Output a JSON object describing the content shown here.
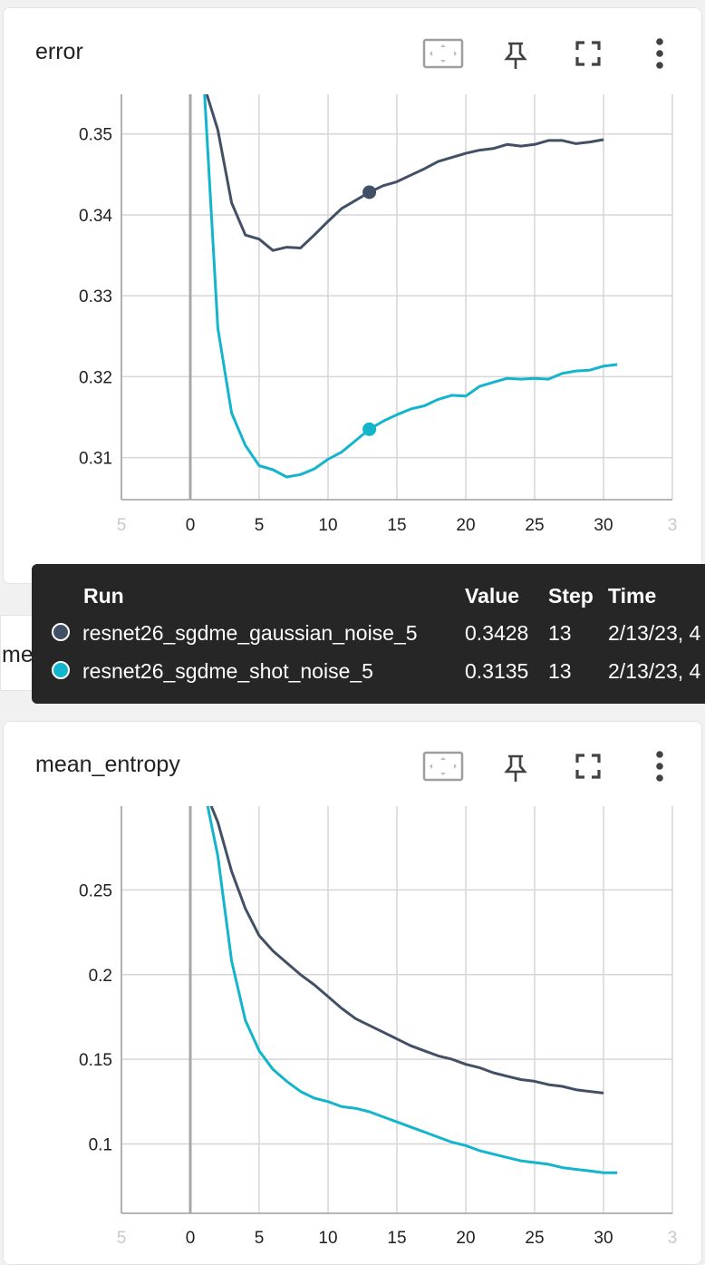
{
  "cards": [
    {
      "title": "error",
      "toolbar": {
        "icons": [
          "fit-domain-icon",
          "pin-icon",
          "fullscreen-icon",
          "more-vert-icon"
        ]
      },
      "chart_data": {
        "type": "line",
        "title": "error",
        "xlim": [
          -5,
          35
        ],
        "ylim": [
          0.3048,
          0.3549
        ],
        "x_ticks": [
          "5",
          "0",
          "5",
          "10",
          "15",
          "20",
          "25",
          "30",
          "3"
        ],
        "y_ticks": [
          "0.35",
          "0.34",
          "0.33",
          "0.32",
          "0.31"
        ],
        "grid": true,
        "colors": [
          "#425066",
          "#12b5cb"
        ],
        "series": [
          {
            "name": "resnet26_sgdme_gaussian_noise_5",
            "color": "#425066",
            "x": [
              1,
              2,
              3,
              4,
              5,
              6,
              7,
              8,
              9,
              10,
              11,
              12,
              13,
              14,
              15,
              16,
              17,
              18,
              19,
              20,
              21,
              22,
              23,
              24,
              25,
              26,
              27,
              28,
              29,
              30
            ],
            "y": [
              0.356,
              0.3505,
              0.3415,
              0.3375,
              0.337,
              0.3356,
              0.336,
              0.3359,
              0.3375,
              0.3392,
              0.3408,
              0.3418,
              0.3428,
              0.3436,
              0.3441,
              0.3449,
              0.3457,
              0.3466,
              0.3471,
              0.3476,
              0.348,
              0.3482,
              0.3487,
              0.3485,
              0.3487,
              0.3492,
              0.3492,
              0.3488,
              0.349,
              0.3493
            ],
            "highlight": {
              "x": 13,
              "y": 0.3428
            }
          },
          {
            "name": "resnet26_sgdme_shot_noise_5",
            "color": "#12b5cb",
            "x": [
              1,
              2,
              3,
              4,
              5,
              6,
              7,
              8,
              9,
              10,
              11,
              12,
              13,
              14,
              15,
              16,
              17,
              18,
              19,
              20,
              21,
              22,
              23,
              24,
              25,
              26,
              27,
              28,
              29,
              30,
              31
            ],
            "y": [
              0.356,
              0.326,
              0.3155,
              0.3115,
              0.309,
              0.3085,
              0.3076,
              0.3079,
              0.3086,
              0.3098,
              0.3107,
              0.3121,
              0.3135,
              0.3145,
              0.3153,
              0.316,
              0.3164,
              0.3172,
              0.3177,
              0.3176,
              0.3188,
              0.3193,
              0.3198,
              0.3197,
              0.3198,
              0.3197,
              0.3204,
              0.3207,
              0.3208,
              0.3213,
              0.3215
            ],
            "highlight": {
              "x": 13,
              "y": 0.3135
            }
          }
        ]
      }
    },
    {
      "title": "mean_entropy",
      "toolbar": {
        "icons": [
          "fit-domain-icon",
          "pin-icon",
          "fullscreen-icon",
          "more-vert-icon"
        ]
      },
      "chart_data": {
        "type": "line",
        "title": "mean_entropy",
        "xlim": [
          -5,
          35
        ],
        "ylim": [
          0.059,
          0.2995
        ],
        "x_ticks": [
          "5",
          "0",
          "5",
          "10",
          "15",
          "20",
          "25",
          "30",
          "3"
        ],
        "y_ticks": [
          "0.25",
          "0.2",
          "0.15",
          "0.1"
        ],
        "grid": true,
        "colors": [
          "#425066",
          "#12b5cb"
        ],
        "series": [
          {
            "name": "resnet26_sgdme_gaussian_noise_5",
            "color": "#425066",
            "x": [
              1,
              2,
              3,
              4,
              5,
              6,
              7,
              8,
              9,
              10,
              11,
              12,
              13,
              14,
              15,
              16,
              17,
              18,
              19,
              20,
              21,
              22,
              23,
              24,
              25,
              26,
              27,
              28,
              29,
              30
            ],
            "y": [
              0.31,
              0.29,
              0.261,
              0.239,
              0.223,
              0.214,
              0.207,
              0.2,
              0.194,
              0.187,
              0.18,
              0.174,
              0.17,
              0.166,
              0.162,
              0.158,
              0.155,
              0.152,
              0.15,
              0.147,
              0.145,
              0.142,
              0.14,
              0.138,
              0.137,
              0.135,
              0.134,
              0.132,
              0.131,
              0.13
            ]
          },
          {
            "name": "resnet26_sgdme_shot_noise_5",
            "color": "#12b5cb",
            "x": [
              1,
              2,
              3,
              4,
              5,
              6,
              7,
              8,
              9,
              10,
              11,
              12,
              13,
              14,
              15,
              16,
              17,
              18,
              19,
              20,
              21,
              22,
              23,
              24,
              25,
              26,
              27,
              28,
              29,
              30,
              31
            ],
            "y": [
              0.31,
              0.27,
              0.208,
              0.173,
              0.155,
              0.144,
              0.137,
              0.131,
              0.127,
              0.125,
              0.122,
              0.121,
              0.119,
              0.116,
              0.113,
              0.11,
              0.107,
              0.104,
              0.101,
              0.099,
              0.096,
              0.094,
              0.092,
              0.09,
              0.089,
              0.088,
              0.086,
              0.085,
              0.084,
              0.083,
              0.083
            ]
          }
        ]
      }
    }
  ],
  "tooltip": {
    "headers": {
      "run": "Run",
      "value": "Value",
      "step": "Step",
      "time": "Time"
    },
    "rows": [
      {
        "color": "#425066",
        "run": "resnet26_sgdme_gaussian_noise_5",
        "value": "0.3428",
        "step": "13",
        "time": "2/13/23, 4"
      },
      {
        "color": "#12b5cb",
        "run": "resnet26_sgdme_shot_noise_5",
        "value": "0.3135",
        "step": "13",
        "time": "2/13/23, 4"
      }
    ]
  },
  "peek_title": "mean_entropy"
}
